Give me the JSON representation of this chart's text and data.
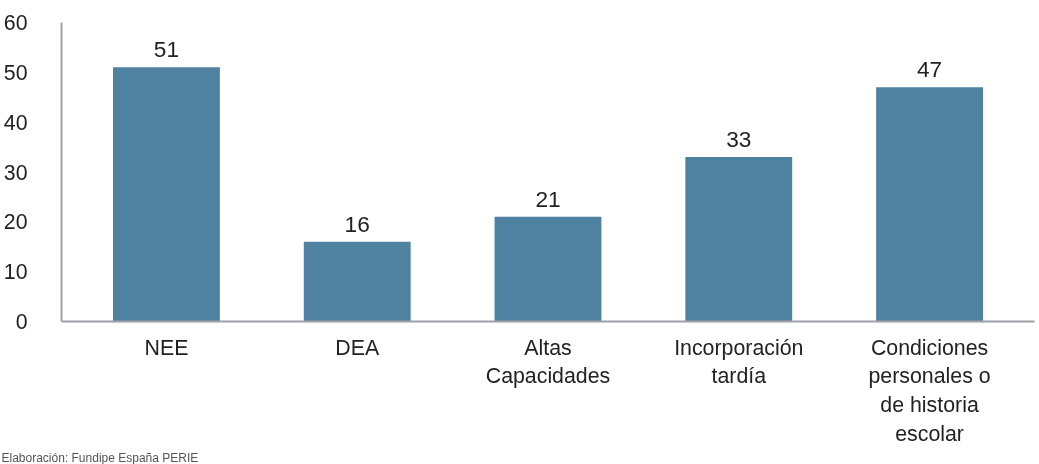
{
  "chart_data": {
    "type": "bar",
    "categories": [
      "NEE",
      "DEA",
      "Altas\nCapacidades",
      "Incorporación\ntardía",
      "Condiciones\npersonales o\nde historia\nescolar"
    ],
    "values": [
      51,
      16,
      21,
      33,
      47
    ],
    "color": "#4f81a1",
    "ylim": [
      0,
      60
    ],
    "yticks": [
      0,
      10,
      20,
      30,
      40,
      50,
      60
    ],
    "grid": false,
    "data_labels": true,
    "annotations": [
      "Elaboración: Fundipe España PERIE"
    ]
  }
}
